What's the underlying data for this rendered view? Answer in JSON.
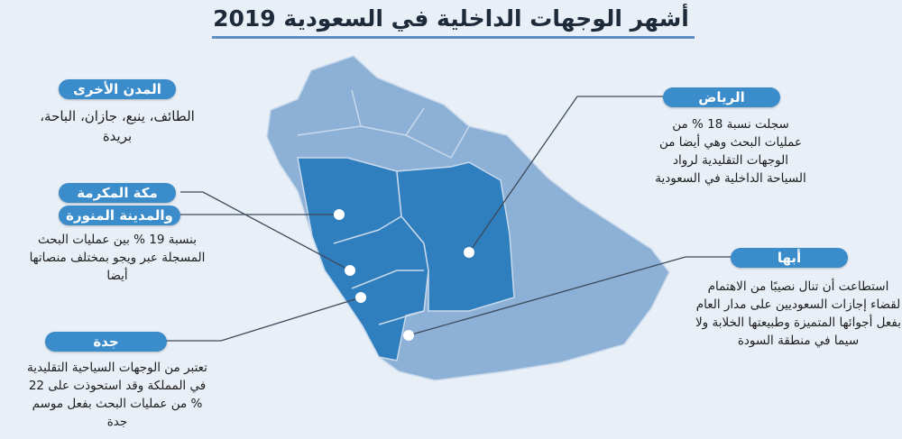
{
  "title": "أشهر الوجهات الداخلية في السعودية 2019",
  "colors": {
    "background": "#e9eff7",
    "map": "#8cb0d6",
    "highlight": "#2f7fbf",
    "pill": "#3b8ccb"
  },
  "cities": {
    "other": {
      "label": "المدن الأخرى",
      "text": "الطائف، ينبع، جازان، الباحة، بريدة"
    },
    "makkah": {
      "label": "مكة المكرمة"
    },
    "madinah": {
      "label": "والمدينة المنورة",
      "text": "بنسبة 19 % بين عمليات البحث المسجلة عبر ويجو بمختلف منصاتها أيضا"
    },
    "riyadh": {
      "label": "الرياض",
      "text": "سجلت نسبة 18 % من عمليات البحث وهي أيضا من الوجهات التقليدية لرواد السياحة الداخلية في السعودية"
    },
    "abha": {
      "label": "أبها",
      "text": "استطاعت أن تنال نصيبًا من الاهتمام لقضاء إجازات السعوديين على مدار العام بفعل أجوائها المتميزة وطبيعتها الخلابة ولا سيما في منطقة السودة"
    },
    "jeddah": {
      "label": "جدة",
      "text": "تعتبر من الوجهات السياحية التقليدية في المملكة وقد استحوذت على 22 % من عمليات البحث بفعل موسم جدة"
    }
  }
}
